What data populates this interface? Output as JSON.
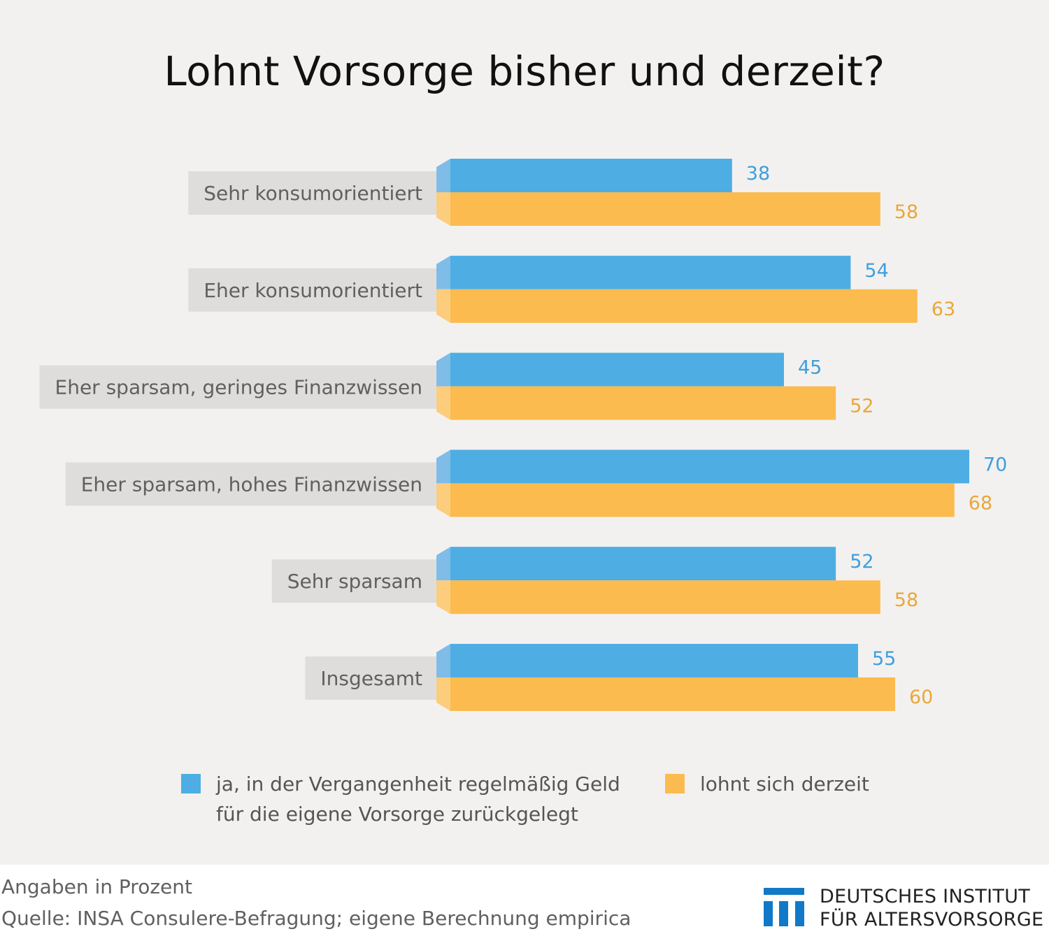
{
  "title": "Lohnt Vorsorge bisher und derzeit?",
  "chart_data": {
    "type": "bar",
    "orientation": "horizontal",
    "title": "Lohnt Vorsorge bisher und derzeit?",
    "xlabel": "",
    "ylabel": "",
    "unit": "Prozent",
    "xlim": [
      0,
      75
    ],
    "grid": false,
    "legend_position": "bottom",
    "categories": [
      "Sehr konsumorientiert",
      "Eher konsumorientiert",
      "Eher sparsam, geringes Finanzwissen",
      "Eher sparsam, hohes Finanzwissen",
      "Sehr sparsam",
      "Insgesamt"
    ],
    "series": [
      {
        "name": "ja, in der Vergangenheit regelmäßig Geld für die eigene Vorsorge zurückgelegt",
        "color": "#4eaee3",
        "values": [
          38,
          54,
          45,
          70,
          52,
          55
        ]
      },
      {
        "name": "lohnt sich derzeit",
        "color": "#fbbb4e",
        "values": [
          58,
          63,
          52,
          68,
          58,
          60
        ]
      }
    ]
  },
  "legend": {
    "series_a_line1": "ja, in der Vergangenheit regelmäßig Geld",
    "series_a_line2": "für die eigene Vorsorge zurückgelegt",
    "series_b": "lohnt sich derzeit",
    "color_a": "#4eaee3",
    "color_b": "#fbbb4e"
  },
  "footer": {
    "note": "Angaben in Prozent",
    "source": "Quelle: INSA Consulere-Befragung; eigene Berechnung  empirica"
  },
  "logo": {
    "line1": "DEUTSCHES INSTITUT",
    "line2": "FÜR ALTERSVORSORGE",
    "color": "#1279c8"
  }
}
